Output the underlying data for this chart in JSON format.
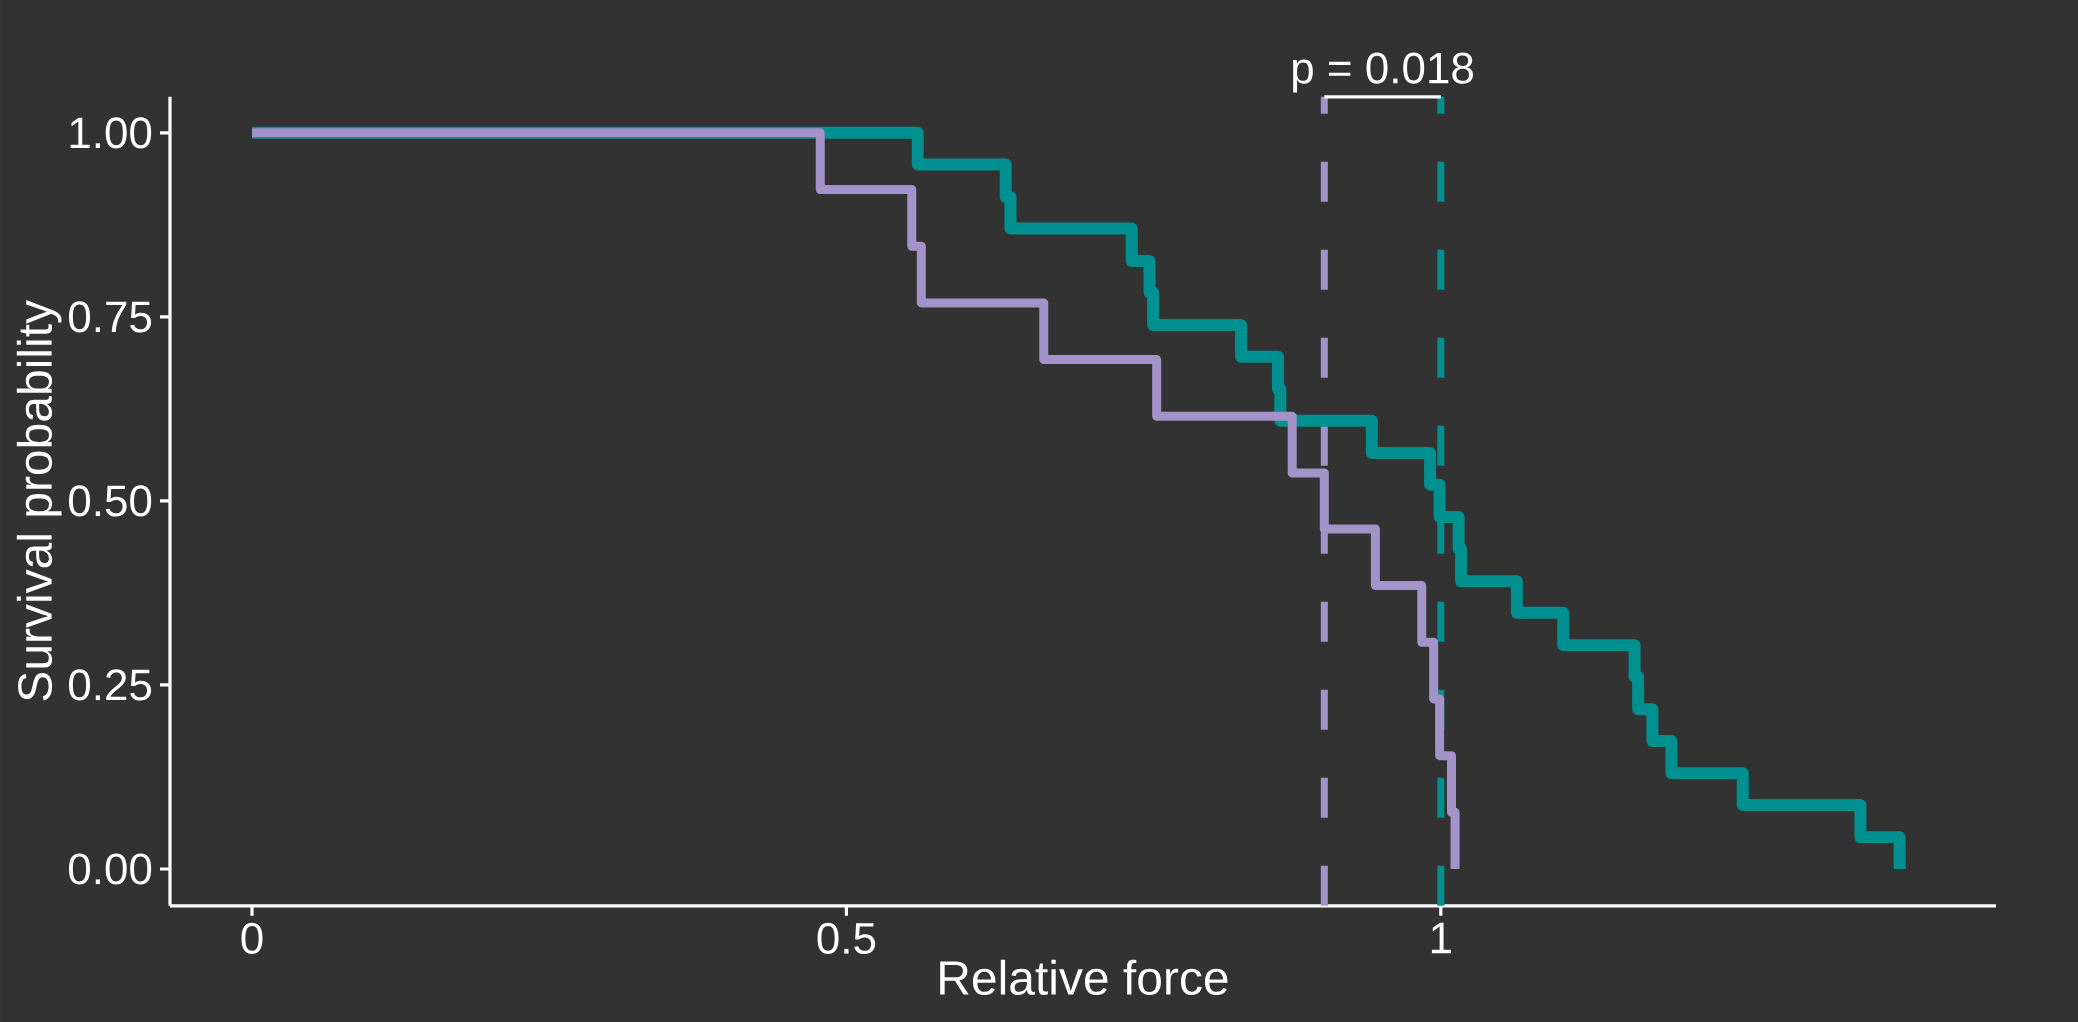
{
  "chart_data": {
    "type": "step",
    "xlabel": "Relative force",
    "ylabel": "Survival probability",
    "xlim": [
      -0.069,
      1.467
    ],
    "ylim": [
      -0.05,
      1.049
    ],
    "xticks": [
      {
        "value": 0,
        "label": "0"
      },
      {
        "value": 0.5,
        "label": "0.5"
      },
      {
        "value": 1,
        "label": "1"
      }
    ],
    "yticks": [
      {
        "value": 0,
        "label": "0.00"
      },
      {
        "value": 0.25,
        "label": "0.25"
      },
      {
        "value": 0.5,
        "label": "0.50"
      },
      {
        "value": 0.75,
        "label": "0.75"
      },
      {
        "value": 1,
        "label": "1.00"
      }
    ],
    "series": [
      {
        "color": "#009090",
        "x": [
          0,
          0.56,
          0.634,
          0.638,
          0.74,
          0.755,
          0.758,
          0.832,
          0.863,
          0.865,
          0.942,
          0.991,
          0.999,
          1.015,
          1.017,
          1.064,
          1.103,
          1.163,
          1.166,
          1.178,
          1.194,
          1.254,
          1.353,
          1.386
        ],
        "values": [
          1,
          0.957,
          0.913,
          0.87,
          0.826,
          0.783,
          0.739,
          0.696,
          0.652,
          0.609,
          0.565,
          0.522,
          0.478,
          0.435,
          0.391,
          0.348,
          0.304,
          0.261,
          0.217,
          0.174,
          0.13,
          0.087,
          0.043,
          0
        ]
      },
      {
        "color": "#a393c8",
        "x": [
          0,
          0.478,
          0.555,
          0.563,
          0.666,
          0.761,
          0.875,
          0.902,
          0.945,
          0.984,
          0.994,
          0.999,
          1.009,
          1.012
        ],
        "values": [
          1,
          0.923,
          0.846,
          0.769,
          0.692,
          0.615,
          0.538,
          0.462,
          0.385,
          0.308,
          0.231,
          0.154,
          0.077,
          0
        ]
      }
    ],
    "ref_lines": [
      {
        "axis": "x",
        "value": 0.902,
        "color": "#a393c8",
        "line_style": "dashed"
      },
      {
        "axis": "x",
        "value": 1.0,
        "color": "#009090",
        "line_style": "dashed"
      }
    ],
    "annotations": [
      "p = 0.018"
    ]
  }
}
